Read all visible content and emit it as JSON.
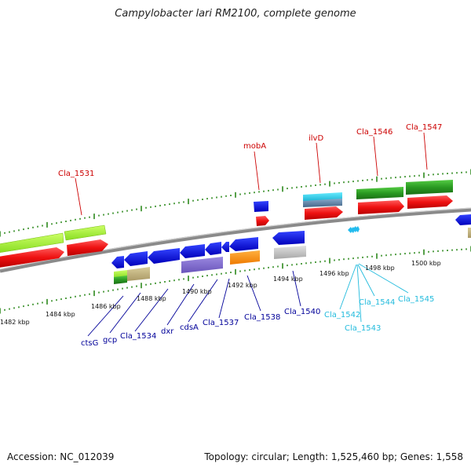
{
  "title": "Campylobacter lari RM2100, complete genome",
  "footer": {
    "accession": "Accession: NC_012039",
    "summary": "Topology: circular; Length: 1,525,460 bp; Genes: 1,558"
  },
  "colors": {
    "backbone": "#8a8a8a",
    "tick": "#2e8a1e",
    "label_red": "#cc0000",
    "label_blue": "#000099",
    "label_cyan": "#22bbdd"
  },
  "kbp_labels": [
    "1482 kbp",
    "1484 kbp",
    "1486 kbp",
    "1488 kbp",
    "1490 kbp",
    "1492 kbp",
    "1494 kbp",
    "1496 kbp",
    "1498 kbp",
    "1500 kbp"
  ],
  "gene_labels": {
    "top": [
      "Cla_1531",
      "mobA",
      "ilvD",
      "Cla_1546",
      "Cla_1547"
    ],
    "bottom_blue": [
      "ctsG",
      "gcp",
      "Cla_1534",
      "dxr",
      "cdsA",
      "Cla_1537",
      "Cla_1538",
      "Cla_1540"
    ],
    "bottom_cyan": [
      "Cla_1542",
      "Cla_1543",
      "Cla_1544",
      "Cla_1545"
    ]
  }
}
